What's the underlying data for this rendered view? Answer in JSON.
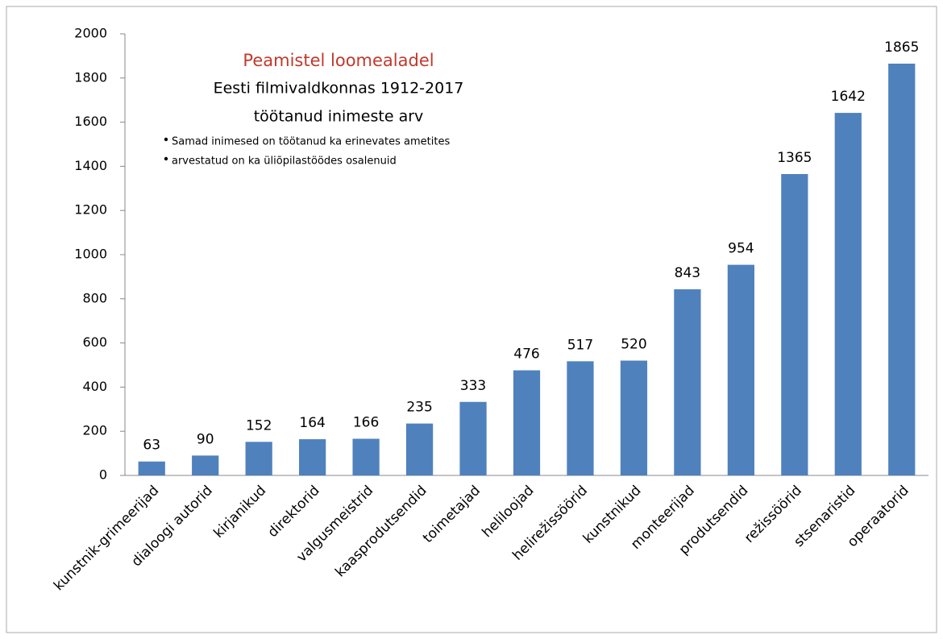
{
  "chart_data": {
    "type": "bar",
    "title": "Peamistel loomealadel",
    "subtitle": [
      "Eesti filmivaldkonnas 1912-2017",
      "töötanud inimeste arv"
    ],
    "annotations": [
      "Samad inimesed on töötanud ka erinevates ametites",
      "arvestatud on ka üliõpilastöödes osalenuid"
    ],
    "categories": [
      "kunstnik-grimeerijad",
      "dialoogi autorid",
      "kirjanikud",
      "direktorid",
      "valgusmeistrid",
      "kaasprodutsendid",
      "toimetajad",
      "heliloojad",
      "helirežissöörid",
      "kunstnikud",
      "monteerijad",
      "produtsendid",
      "režissöörid",
      "stsenaristid",
      "operaatorid"
    ],
    "values": [
      63,
      90,
      152,
      164,
      166,
      235,
      333,
      476,
      517,
      520,
      843,
      954,
      1365,
      1642,
      1865
    ],
    "color": "#4f81bd",
    "title_color": "#c0392b",
    "ylim": [
      0,
      2000
    ],
    "yticks": [
      0,
      200,
      400,
      600,
      800,
      1000,
      1200,
      1400,
      1600,
      1800,
      2000
    ],
    "grid": false
  }
}
